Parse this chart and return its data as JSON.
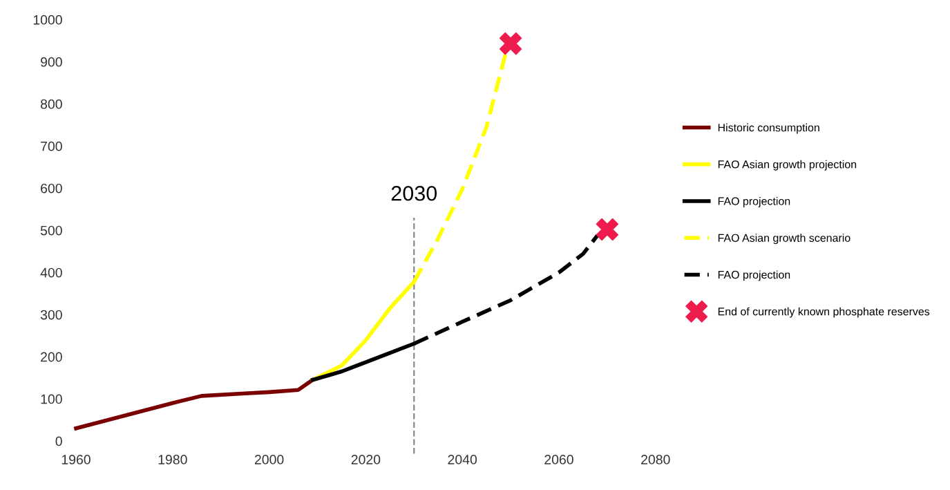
{
  "chart_data": {
    "type": "line",
    "series": [
      {
        "name": "Historic consumption",
        "color": "#7a0000",
        "line_style": "solid",
        "x": [
          1960,
          1970,
          1980,
          1986,
          1995,
          2000,
          2006,
          2009
        ],
        "values": [
          30,
          60,
          90,
          107,
          113,
          116,
          121,
          145
        ]
      },
      {
        "name": "FAO Asian growth projection",
        "color": "#ffff00",
        "line_style": "solid",
        "x": [
          2009,
          2015,
          2020,
          2025,
          2030
        ],
        "values": [
          145,
          179,
          239,
          315,
          378
        ]
      },
      {
        "name": "FAO projection",
        "color": "#000000",
        "line_style": "solid",
        "x": [
          2009,
          2015,
          2020,
          2030
        ],
        "values": [
          145,
          165,
          187,
          231
        ]
      },
      {
        "name": "FAO Asian growth scenario",
        "color": "#ffff00",
        "line_style": "dashed",
        "x": [
          2030,
          2035,
          2040,
          2045,
          2049
        ],
        "values": [
          378,
          481,
          598,
          745,
          921
        ]
      },
      {
        "name": "FAO projection",
        "color": "#000000",
        "line_style": "dashed",
        "x": [
          2030,
          2040,
          2050,
          2060,
          2065,
          2068
        ],
        "values": [
          231,
          283,
          334,
          400,
          444,
          488
        ]
      },
      {
        "name": "End of currently known phosphate reserves",
        "type": "scatter",
        "marker": "cross",
        "color": "#ee1b4d",
        "x": [
          2050,
          2070
        ],
        "values": [
          943,
          502
        ]
      }
    ],
    "xlim": [
      1960,
      2080
    ],
    "xticks": [
      1960,
      1980,
      2000,
      2020,
      2040,
      2060,
      2080
    ],
    "ylim": [
      0,
      1000
    ],
    "yticks": [
      0,
      100,
      200,
      300,
      400,
      500,
      600,
      700,
      800,
      900,
      1000
    ],
    "ref_lines": [
      {
        "axis": "x",
        "value": 2030,
        "label": "2030",
        "color": "#808080",
        "line_style": "dashed"
      }
    ],
    "legend": "right",
    "grid": false
  }
}
